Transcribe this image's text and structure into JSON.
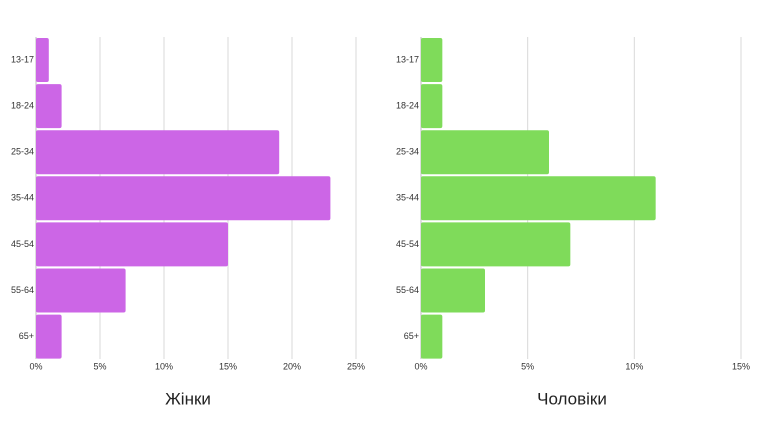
{
  "chart_data": [
    {
      "type": "bar",
      "orientation": "horizontal",
      "title": "Жінки",
      "categories": [
        "13-17",
        "18-24",
        "25-34",
        "35-44",
        "45-54",
        "55-64",
        "65+"
      ],
      "values": [
        1,
        2,
        19,
        23,
        15,
        7,
        2
      ],
      "xlim": [
        0,
        25
      ],
      "xticks": [
        0,
        5,
        10,
        15,
        20,
        25
      ],
      "tick_suffix": "%",
      "grid": true,
      "color": "#cc66e6"
    },
    {
      "type": "bar",
      "orientation": "horizontal",
      "title": "Чоловіки",
      "categories": [
        "13-17",
        "18-24",
        "25-34",
        "35-44",
        "45-54",
        "55-64",
        "65+"
      ],
      "values": [
        1,
        1,
        6,
        11,
        7,
        3,
        1
      ],
      "xlim": [
        0,
        15
      ],
      "xticks": [
        0,
        5,
        10,
        15
      ],
      "tick_suffix": "%",
      "grid": true,
      "color": "#7fdb5a"
    }
  ]
}
